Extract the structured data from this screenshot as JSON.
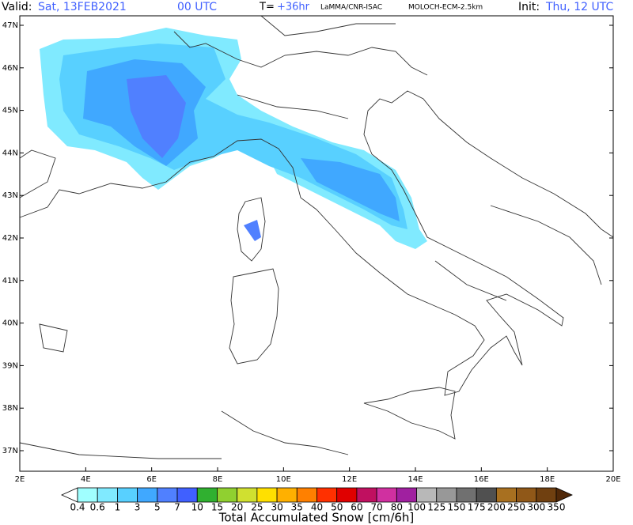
{
  "header": {
    "valid_label": "Valid:",
    "valid_date": "Sat, 13FEB2021",
    "valid_time": "00 UTC",
    "lead_label": "T=",
    "lead": "+36hr",
    "source": "LaMMA/CNR-ISAC",
    "model": "MOLOCH-ECM-2.5km",
    "init_label": "Init:",
    "init": "Thu, 12 UTC"
  },
  "map": {
    "lat_labels": [
      "47N",
      "46N",
      "45N",
      "44N",
      "43N",
      "42N",
      "41N",
      "40N",
      "39N",
      "38N",
      "37N"
    ],
    "lon_labels": [
      "2E",
      "4E",
      "6E",
      "8E",
      "10E",
      "12E",
      "14E",
      "16E",
      "18E",
      "20E"
    ]
  },
  "colorbar": {
    "levels": [
      "0.4",
      "0.6",
      "1",
      "3",
      "5",
      "7",
      "10",
      "15",
      "20",
      "25",
      "30",
      "35",
      "40",
      "50",
      "60",
      "70",
      "80",
      "100",
      "125",
      "150",
      "175",
      "200",
      "250",
      "300",
      "350"
    ],
    "colors": [
      "#ffffff",
      "#a0ffff",
      "#80eaff",
      "#58d0ff",
      "#40a8ff",
      "#5080ff",
      "#4060ff",
      "#30b030",
      "#90d030",
      "#d0e030",
      "#ffe000",
      "#ffb000",
      "#ff8000",
      "#ff3000",
      "#e00000",
      "#c01060",
      "#d030a0",
      "#a020a0",
      "#b8b8b8",
      "#989898",
      "#707070",
      "#505050",
      "#a87020",
      "#905818",
      "#704010",
      "#502808"
    ],
    "title": "Total Accumulated Snow [cm/6h]"
  }
}
